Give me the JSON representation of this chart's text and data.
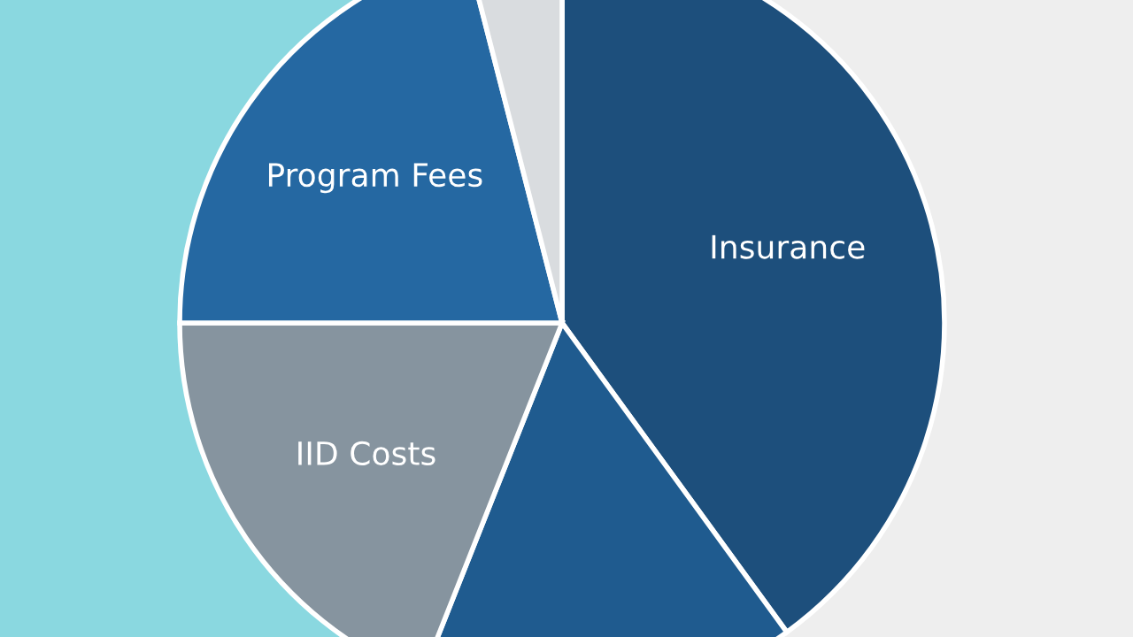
{
  "chart_data": {
    "type": "pie",
    "categories": [
      "Insurance",
      null,
      "IID Costs",
      "Program Fees",
      null
    ],
    "values": [
      40,
      16,
      19,
      21,
      4
    ],
    "colors": [
      "#1d4f7c",
      "#1f5b8f",
      "#86949f",
      "#2568a2",
      "#d9dcdf"
    ]
  }
}
